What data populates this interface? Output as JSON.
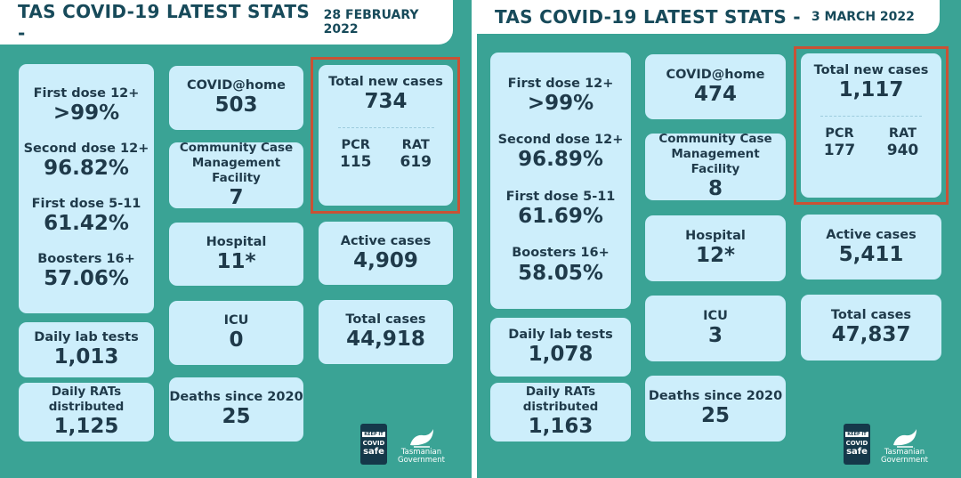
{
  "panels": [
    {
      "title": "TAS COVID-19 LATEST STATS -",
      "date": "28 FEBRUARY 2022",
      "first_dose_12_label": "First dose 12+",
      "first_dose_12_value": ">99%",
      "second_dose_12_label": "Second dose 12+",
      "second_dose_12_value": "96.82%",
      "first_dose_5_11_label": "First dose 5-11",
      "first_dose_5_11_value": "61.42%",
      "boosters_label": "Boosters 16+",
      "boosters_value": "57.06%",
      "daily_lab_label": "Daily lab tests",
      "daily_lab_value": "1,013",
      "daily_rats_label": "Daily RATs distributed",
      "daily_rats_value": "1,125",
      "covid_home_label": "COVID@home",
      "covid_home_value": "503",
      "ccmf_label_1": "Community Case",
      "ccmf_label_2": "Management Facility",
      "ccmf_value": "7",
      "hospital_label": "Hospital",
      "hospital_value": "11*",
      "icu_label": "ICU",
      "icu_value": "0",
      "deaths_label": "Deaths since 2020",
      "deaths_value": "25",
      "total_new_label": "Total new cases",
      "total_new_value": "734",
      "pcr_label": "PCR",
      "pcr_value": "115",
      "rat_label": "RAT",
      "rat_value": "619",
      "active_label": "Active cases",
      "active_value": "4,909",
      "total_label": "Total cases",
      "total_value": "44,918"
    },
    {
      "title": "TAS COVID-19 LATEST STATS -",
      "date": "3 MARCH 2022",
      "first_dose_12_label": "First dose 12+",
      "first_dose_12_value": ">99%",
      "second_dose_12_label": "Second dose 12+",
      "second_dose_12_value": "96.89%",
      "first_dose_5_11_label": "First dose 5-11",
      "first_dose_5_11_value": "61.69%",
      "boosters_label": "Boosters 16+",
      "boosters_value": "58.05%",
      "daily_lab_label": "Daily lab tests",
      "daily_lab_value": "1,078",
      "daily_rats_label": "Daily RATs distributed",
      "daily_rats_value": "1,163",
      "covid_home_label": "COVID@home",
      "covid_home_value": "474",
      "ccmf_label_1": "Community Case",
      "ccmf_label_2": "Management Facility",
      "ccmf_value": "8",
      "hospital_label": "Hospital",
      "hospital_value": "12*",
      "icu_label": "ICU",
      "icu_value": "3",
      "deaths_label": "Deaths since 2020",
      "deaths_value": "25",
      "total_new_label": "Total new cases",
      "total_new_value": "1,117",
      "pcr_label": "PCR",
      "pcr_value": "177",
      "rat_label": "RAT",
      "rat_value": "940",
      "active_label": "Active cases",
      "active_value": "5,411",
      "total_label": "Total cases",
      "total_value": "47,837"
    }
  ],
  "logos": {
    "keep_it": "KEEP IT",
    "covid": "COVID",
    "safe": "safe",
    "tas_line1": "Tasmanian",
    "tas_line2": "Government"
  },
  "colors": {
    "panel_bg": "#3aa395",
    "card_bg": "#cdeefb",
    "highlight_border": "#c95235",
    "title_text": "#174a5a"
  }
}
